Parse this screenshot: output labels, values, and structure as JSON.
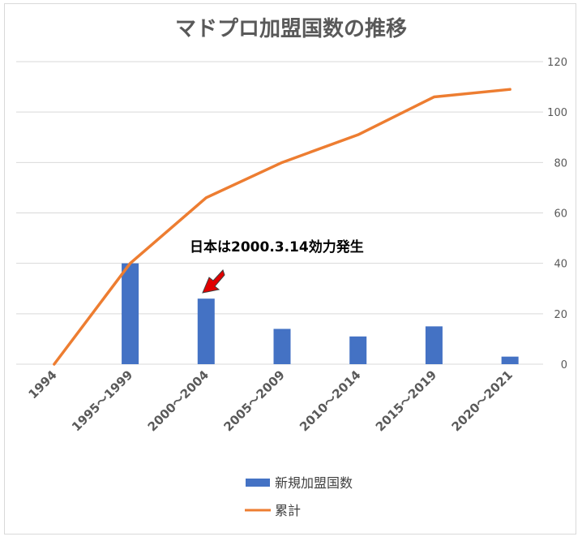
{
  "chart_data": {
    "type": "bar+line",
    "title": "マドプロ加盟国数の推移",
    "categories": [
      "1994",
      "1995～1999",
      "2000～2004",
      "2005～2009",
      "2010～2014",
      "2015～2019",
      "2020～2021"
    ],
    "series": [
      {
        "name": "新規加盟国数",
        "type": "bar",
        "color": "#4472C4",
        "values": [
          0,
          40,
          26,
          14,
          11,
          15,
          3
        ]
      },
      {
        "name": "累計",
        "type": "line",
        "color": "#ED7D31",
        "values": [
          0,
          40,
          66,
          80,
          91,
          106,
          109
        ]
      }
    ],
    "y_axis": {
      "side": "right",
      "ylim": [
        0,
        120
      ],
      "ticks": [
        0,
        20,
        40,
        60,
        80,
        100,
        120
      ]
    },
    "grid": true,
    "legend": "bottom",
    "annotation": {
      "text": "日本は2000.3.14効力発生",
      "points_to": "2000～2004",
      "arrow_color": "#E00000"
    }
  }
}
